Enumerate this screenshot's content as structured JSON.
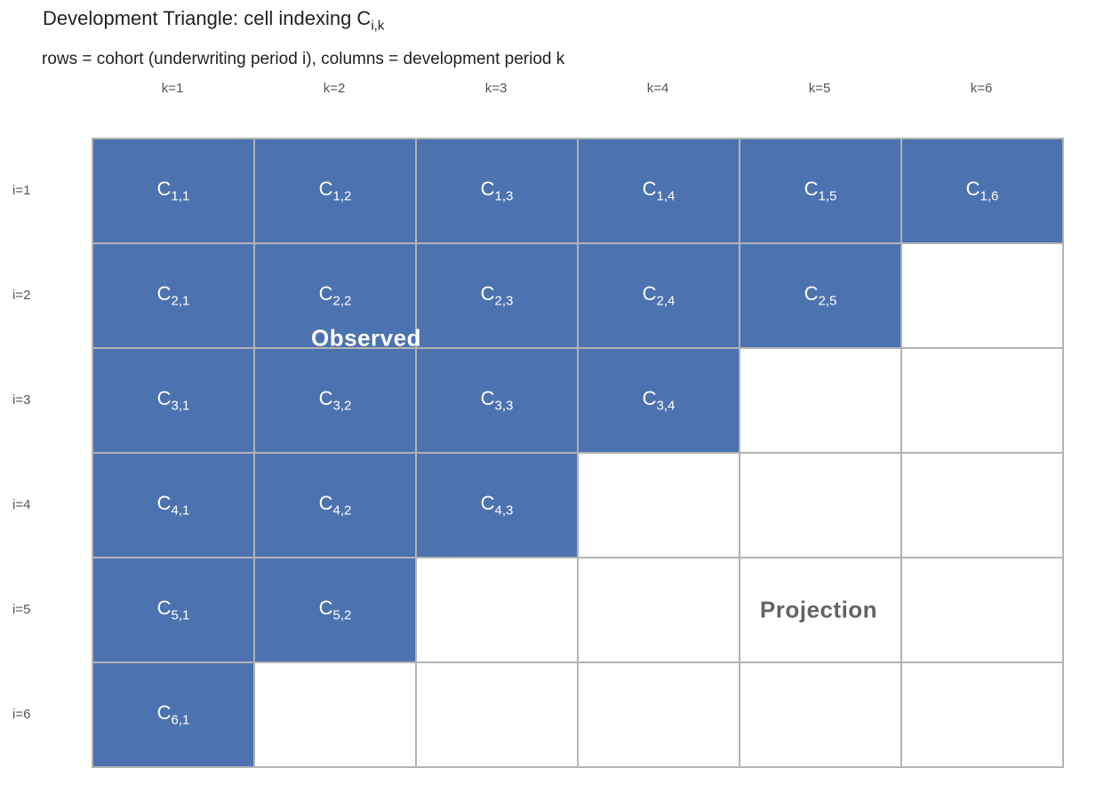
{
  "title": {
    "main": "Development Triangle: cell indexing C",
    "subscript": "i,k",
    "subtitle": "rows = cohort (underwriting period i), columns = development period k"
  },
  "column_headers": [
    "k=1",
    "k=2",
    "k=3",
    "k=4",
    "k=5",
    "k=6"
  ],
  "row_headers": [
    "i=1",
    "i=2",
    "i=3",
    "i=4",
    "i=5",
    "i=6"
  ],
  "grid": {
    "rows": 6,
    "cols": 6,
    "cell_letter": "C",
    "filled_cells": [
      {
        "i": 1,
        "k": 1,
        "sub": "1,1"
      },
      {
        "i": 1,
        "k": 2,
        "sub": "1,2"
      },
      {
        "i": 1,
        "k": 3,
        "sub": "1,3"
      },
      {
        "i": 1,
        "k": 4,
        "sub": "1,4"
      },
      {
        "i": 1,
        "k": 5,
        "sub": "1,5"
      },
      {
        "i": 1,
        "k": 6,
        "sub": "1,6"
      },
      {
        "i": 2,
        "k": 1,
        "sub": "2,1"
      },
      {
        "i": 2,
        "k": 2,
        "sub": "2,2"
      },
      {
        "i": 2,
        "k": 3,
        "sub": "2,3"
      },
      {
        "i": 2,
        "k": 4,
        "sub": "2,4"
      },
      {
        "i": 2,
        "k": 5,
        "sub": "2,5"
      },
      {
        "i": 3,
        "k": 1,
        "sub": "3,1"
      },
      {
        "i": 3,
        "k": 2,
        "sub": "3,2"
      },
      {
        "i": 3,
        "k": 3,
        "sub": "3,3"
      },
      {
        "i": 3,
        "k": 4,
        "sub": "3,4"
      },
      {
        "i": 4,
        "k": 1,
        "sub": "4,1"
      },
      {
        "i": 4,
        "k": 2,
        "sub": "4,2"
      },
      {
        "i": 4,
        "k": 3,
        "sub": "4,3"
      },
      {
        "i": 5,
        "k": 1,
        "sub": "5,1"
      },
      {
        "i": 5,
        "k": 2,
        "sub": "5,2"
      },
      {
        "i": 6,
        "k": 1,
        "sub": "6,1"
      }
    ]
  },
  "annotations": {
    "observed": "Observed",
    "projection": "Projection"
  },
  "colors": {
    "filled_cell": "#4C72B0",
    "cell_border": "#b3b3b3",
    "cell_text": "#ffffff",
    "axis_label": "#555555",
    "title_text": "#222222",
    "observed_label": "#ffffff",
    "projection_label": "#636363"
  }
}
